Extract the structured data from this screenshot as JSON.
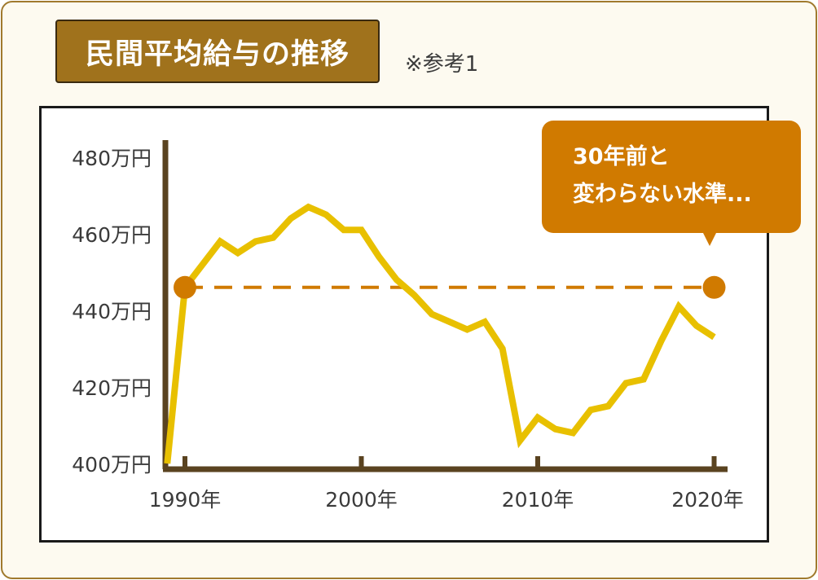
{
  "title": "民間平均給与の推移",
  "note": "※参考1",
  "callout": {
    "line1": "30年前と",
    "line2": "変わらない水準..."
  },
  "colors": {
    "line": "#e8c000",
    "marker": "#d07a00",
    "axis": "#5a4320",
    "frame": "#a07a2e"
  },
  "chart_data": {
    "type": "line",
    "title": "民間平均給与の推移",
    "x": [
      1989,
      1990,
      1991,
      1992,
      1993,
      1994,
      1995,
      1996,
      1997,
      1998,
      1999,
      2000,
      2001,
      2002,
      2003,
      2004,
      2005,
      2006,
      2007,
      2008,
      2009,
      2010,
      2011,
      2012,
      2013,
      2014,
      2015,
      2016,
      2017,
      2018,
      2019,
      2020
    ],
    "series": [
      {
        "values": [
          400,
          446,
          452,
          458,
          455,
          458,
          459,
          464,
          467,
          465,
          461,
          461,
          454,
          448,
          444,
          439,
          437,
          435,
          437,
          430,
          406,
          412,
          409,
          408,
          414,
          415,
          421,
          422,
          432,
          441,
          436,
          433
        ]
      }
    ],
    "reference": {
      "label": "30年前と変わらない水準...",
      "value": 446,
      "x_start": 1990,
      "x_end": 2020
    },
    "ylim": [
      400,
      480
    ],
    "y_ticks": [
      400,
      420,
      440,
      460,
      480
    ],
    "y_tick_labels": [
      "400万円",
      "420万円",
      "440万円",
      "460万円",
      "480万円"
    ],
    "x_ticks": [
      1990,
      2000,
      2010,
      2020
    ],
    "x_tick_labels": [
      "1990年",
      "2000年",
      "2010年",
      "2020年"
    ],
    "grid": false,
    "legend": "none"
  }
}
